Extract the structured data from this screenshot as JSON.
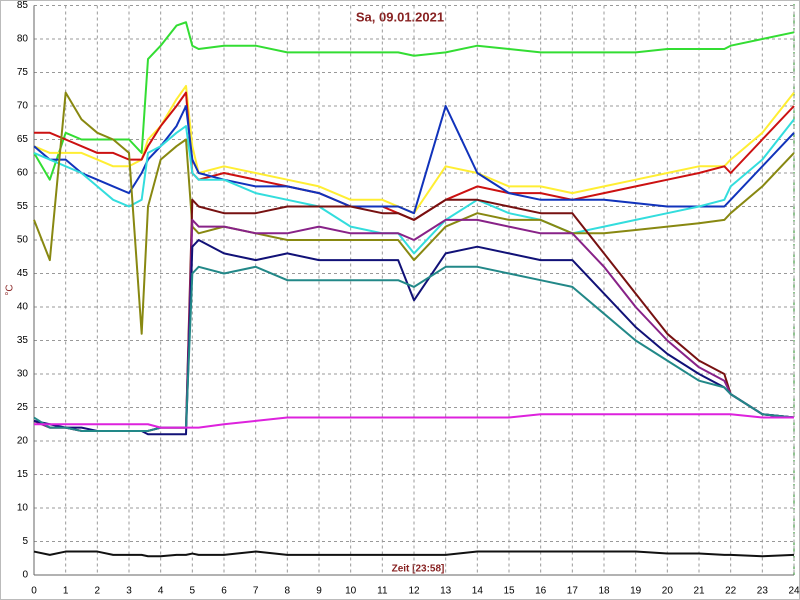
{
  "chart_data": {
    "type": "line",
    "title": "Sa, 09.01.2021",
    "x_label": "Zeit [23:58]",
    "y_label": "°C",
    "x": [
      0,
      0.5,
      1,
      1.5,
      2,
      2.5,
      3,
      3.4,
      3.6,
      4,
      4.5,
      4.8,
      5,
      5.2,
      6,
      7,
      8,
      9,
      10,
      11,
      11.5,
      12,
      13,
      14,
      15,
      16,
      17,
      18,
      19,
      20,
      21,
      21.8,
      22,
      23,
      24
    ],
    "xlim": [
      0,
      24
    ],
    "xticks": [
      0,
      1,
      2,
      3,
      4,
      5,
      6,
      7,
      8,
      9,
      10,
      11,
      12,
      13,
      14,
      15,
      16,
      17,
      18,
      19,
      20,
      21,
      22,
      23,
      24
    ],
    "ylim": [
      0,
      85
    ],
    "yticks": [
      0,
      5,
      10,
      15,
      20,
      25,
      30,
      35,
      40,
      45,
      50,
      55,
      60,
      65,
      70,
      75,
      80,
      85
    ],
    "grid": true,
    "series": [
      {
        "color": "#33dd33",
        "values": [
          63,
          59,
          66,
          65,
          65,
          65,
          65,
          63,
          77,
          79,
          82,
          82.5,
          79,
          78.5,
          79,
          79,
          78,
          78,
          78,
          78,
          78,
          77.5,
          78,
          79,
          78.5,
          78,
          78,
          78,
          78,
          78.5,
          78.5,
          78.5,
          79,
          80,
          81
        ]
      },
      {
        "color": "#ffee33",
        "values": [
          64,
          63,
          63,
          63,
          62,
          61,
          61,
          62,
          65,
          67,
          71,
          73,
          64,
          60,
          61,
          60,
          59,
          58,
          56,
          56,
          55,
          54,
          61,
          60,
          58,
          58,
          57,
          58,
          59,
          60,
          61,
          61,
          62,
          66,
          72
        ]
      },
      {
        "color": "#cc1111",
        "values": [
          66,
          66,
          65,
          64,
          63,
          63,
          62,
          62,
          64,
          67,
          70,
          72,
          60,
          59,
          60,
          59,
          58,
          57,
          55,
          55,
          54,
          53,
          56,
          58,
          57,
          57,
          56,
          57,
          58,
          59,
          60,
          61,
          60,
          65,
          70
        ]
      },
      {
        "color": "#1133bb",
        "values": [
          64,
          62,
          62,
          60,
          59,
          58,
          57,
          60,
          62,
          64,
          67,
          70,
          62,
          60,
          59,
          58,
          58,
          57,
          55,
          55,
          55,
          54,
          70,
          60,
          57,
          56,
          56,
          56,
          55.5,
          55,
          55,
          55,
          56,
          61,
          66
        ]
      },
      {
        "color": "#33dddd",
        "values": [
          63,
          62,
          61,
          60,
          58,
          56,
          55,
          56,
          63,
          64,
          66,
          67,
          60,
          59,
          59,
          57,
          56,
          55,
          52,
          51,
          51,
          48,
          53,
          56,
          54,
          53,
          51,
          52,
          53,
          54,
          55,
          56,
          58,
          62,
          68
        ]
      },
      {
        "color": "#888811",
        "values": [
          53,
          47,
          72,
          68,
          66,
          65,
          63,
          36,
          55,
          62,
          64,
          65,
          52,
          51,
          52,
          51,
          50,
          50,
          50,
          50,
          50,
          47,
          52,
          54,
          53,
          53,
          51,
          51,
          51.5,
          52,
          52.5,
          53,
          54,
          58,
          63
        ]
      },
      {
        "color": "#771111",
        "values": [
          23,
          22,
          22,
          21.5,
          21.5,
          21.5,
          21.5,
          21.5,
          21.5,
          22,
          22,
          22,
          56,
          55,
          54,
          54,
          55,
          55,
          55,
          54,
          54,
          53,
          56,
          56,
          55,
          54,
          54,
          48,
          42,
          36,
          32,
          30,
          27,
          24,
          23.5
        ]
      },
      {
        "color": "#882288",
        "values": [
          23,
          22,
          22,
          21.5,
          21.5,
          21.5,
          21.5,
          21.5,
          21.5,
          22,
          22,
          22,
          53,
          52,
          52,
          51,
          51,
          52,
          51,
          51,
          51,
          50,
          53,
          53,
          52,
          51,
          51,
          46,
          40,
          35,
          31,
          29,
          27,
          24,
          23.5
        ]
      },
      {
        "color": "#111177",
        "values": [
          23,
          22.5,
          22,
          22,
          21.5,
          21.5,
          21.5,
          21.5,
          21,
          21,
          21,
          21,
          49,
          50,
          48,
          47,
          48,
          47,
          47,
          47,
          47,
          41,
          48,
          49,
          48,
          47,
          47,
          42,
          37,
          33,
          30,
          28,
          27,
          24,
          23.5
        ]
      },
      {
        "color": "#228888",
        "values": [
          23.5,
          22,
          22,
          21.5,
          21.5,
          21.5,
          21.5,
          21.5,
          21.5,
          22,
          22,
          22,
          45,
          46,
          45,
          46,
          44,
          44,
          44,
          44,
          44,
          43,
          46,
          46,
          45,
          44,
          43,
          39,
          35,
          32,
          29,
          28,
          27,
          24,
          23.5
        ]
      },
      {
        "color": "#dd22dd",
        "values": [
          22.5,
          22.5,
          22.5,
          22.5,
          22.5,
          22.5,
          22.5,
          22.5,
          22.5,
          22,
          22,
          22,
          22,
          22,
          22.5,
          23,
          23.5,
          23.5,
          23.5,
          23.5,
          23.5,
          23.5,
          23.5,
          23.5,
          23.5,
          24,
          24,
          24,
          24,
          24,
          24,
          24,
          24,
          23.5,
          23.5
        ]
      },
      {
        "color": "#111111",
        "values": [
          3.5,
          3,
          3.5,
          3.5,
          3.5,
          3,
          3,
          3,
          2.8,
          2.8,
          3,
          3,
          3.2,
          3,
          3,
          3.5,
          3,
          3,
          3,
          3,
          3,
          3,
          3,
          3.5,
          3.5,
          3.5,
          3.5,
          3.5,
          3.5,
          3.2,
          3.2,
          3,
          3,
          2.8,
          3
        ]
      }
    ]
  }
}
